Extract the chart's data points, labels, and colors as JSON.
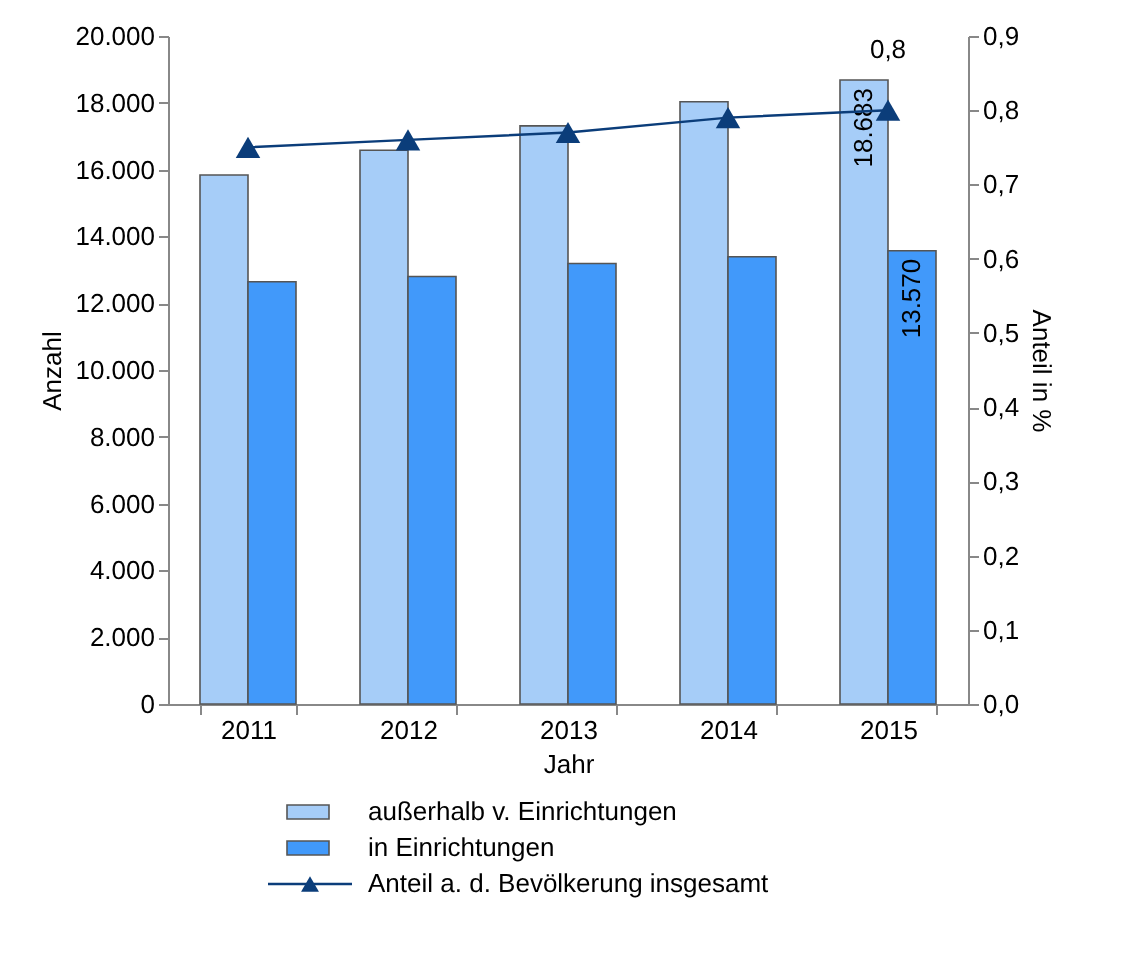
{
  "chart_data": {
    "type": "bar",
    "xlabel": "Jahr",
    "ylabel": "Anzahl",
    "y2label": "Anteil in %",
    "categories": [
      "2011",
      "2012",
      "2013",
      "2014",
      "2015"
    ],
    "ylim": [
      0,
      20000
    ],
    "yticks": [
      {
        "value": 0,
        "label": "0"
      },
      {
        "value": 2000,
        "label": "2.000"
      },
      {
        "value": 4000,
        "label": "4.000"
      },
      {
        "value": 6000,
        "label": "6.000"
      },
      {
        "value": 8000,
        "label": "8.000"
      },
      {
        "value": 10000,
        "label": "10.000"
      },
      {
        "value": 12000,
        "label": "12.000"
      },
      {
        "value": 14000,
        "label": "14.000"
      },
      {
        "value": 16000,
        "label": "16.000"
      },
      {
        "value": 18000,
        "label": "18.000"
      },
      {
        "value": 20000,
        "label": "20.000"
      }
    ],
    "y2lim": [
      0,
      0.9
    ],
    "y2ticks": [
      {
        "value": 0,
        "label": "0,0"
      },
      {
        "value": 0.1,
        "label": "0,1"
      },
      {
        "value": 0.2,
        "label": "0,2"
      },
      {
        "value": 0.3,
        "label": "0,3"
      },
      {
        "value": 0.4,
        "label": "0,4"
      },
      {
        "value": 0.5,
        "label": "0,5"
      },
      {
        "value": 0.6,
        "label": "0,6"
      },
      {
        "value": 0.7,
        "label": "0,7"
      },
      {
        "value": 0.8,
        "label": "0,8"
      },
      {
        "value": 0.9,
        "label": "0,9"
      }
    ],
    "legend": "bottom",
    "grid": false,
    "series": [
      {
        "name": "außerhalb v. Einrichtungen",
        "color": "#a6cdf8",
        "values": [
          15840,
          16580,
          17310,
          18030,
          18683
        ],
        "value_labels": [
          null,
          null,
          null,
          null,
          "18.683"
        ]
      },
      {
        "name": "in Einrichtungen",
        "color": "#4199fa",
        "values": [
          12640,
          12800,
          13190,
          13390,
          13570
        ],
        "value_labels": [
          null,
          null,
          null,
          null,
          "13.570"
        ]
      },
      {
        "name": "Anteil a. d. Bevölkerung insgesamt",
        "type": "line",
        "axis": "y2",
        "color": "#0b3d7a",
        "marker": "triangle",
        "values": [
          0.75,
          0.76,
          0.77,
          0.79,
          0.8
        ],
        "value_labels": [
          null,
          null,
          null,
          null,
          "0,8"
        ]
      }
    ]
  }
}
